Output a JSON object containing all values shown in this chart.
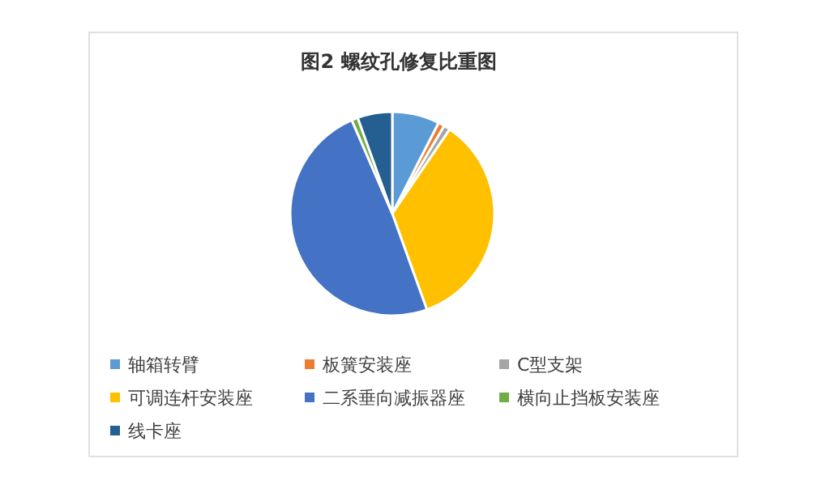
{
  "chart_data": {
    "type": "pie",
    "title": "图2 螺纹孔修复比重图",
    "categories": [
      "轴箱转臂",
      "板簧安装座",
      "C型支架",
      "可调连杆安装座",
      "二系垂向减振器座",
      "横向止挡板安装座",
      "线卡座"
    ],
    "values": [
      7.5,
      1,
      1,
      35,
      49,
      1,
      5.5
    ],
    "colors": [
      "#5b9bd5",
      "#ed7d31",
      "#a5a5a5",
      "#ffc000",
      "#4472c4",
      "#70ad47",
      "#255e91"
    ],
    "legend": "bottom"
  }
}
